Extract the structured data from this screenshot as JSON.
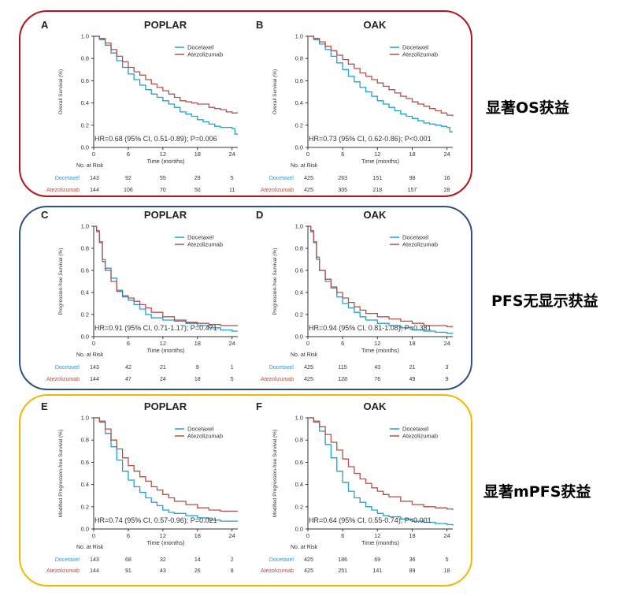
{
  "colors": {
    "docetaxel": "#1e9fd8",
    "atezolizumab": "#b5504a",
    "os_box": "#b5121b",
    "pfs_box": "#2f4f86",
    "mpfs_box": "#f2b800"
  },
  "annotations": {
    "os": "显著OS获益",
    "pfs": "PFS无显示获益",
    "mpfs": "显著mPFS获益"
  },
  "risk_header": "No. at Risk",
  "x_label": "Time (months)",
  "chart_data": [
    {
      "id": "A",
      "type": "line",
      "panel_letter": "A",
      "title": "POPLAR",
      "ylabel": "Overall Survival (%)",
      "xlabel": "Time (months)",
      "xlim": [
        0,
        25
      ],
      "ylim": [
        0,
        1
      ],
      "xticks": [
        0,
        6,
        12,
        18,
        24
      ],
      "yticks": [
        0,
        0.2,
        0.4,
        0.6,
        0.8,
        1.0
      ],
      "legend": "top-right",
      "hr_text": "HR=0.68 (95% CI, 0.51-0.89); P=0.006",
      "series": [
        {
          "name": "Docetaxel",
          "x": [
            0,
            1,
            2,
            3,
            4,
            5,
            6,
            7,
            8,
            9,
            10,
            11,
            12,
            13,
            14,
            15,
            16,
            17,
            18,
            19,
            20,
            21,
            22,
            23,
            24,
            24.5,
            25
          ],
          "y": [
            1,
            0.97,
            0.92,
            0.85,
            0.78,
            0.72,
            0.66,
            0.61,
            0.56,
            0.52,
            0.48,
            0.45,
            0.42,
            0.39,
            0.36,
            0.32,
            0.3,
            0.28,
            0.25,
            0.23,
            0.21,
            0.19,
            0.18,
            0.18,
            0.17,
            0.12,
            0.12
          ]
        },
        {
          "name": "Atezolizumab",
          "x": [
            0,
            1,
            2,
            3,
            4,
            5,
            6,
            7,
            8,
            9,
            10,
            11,
            12,
            13,
            14,
            15,
            16,
            17,
            18,
            19,
            20,
            21,
            22,
            23,
            24,
            25
          ],
          "y": [
            1,
            0.98,
            0.94,
            0.88,
            0.82,
            0.77,
            0.72,
            0.68,
            0.65,
            0.61,
            0.57,
            0.54,
            0.51,
            0.48,
            0.45,
            0.42,
            0.41,
            0.4,
            0.39,
            0.39,
            0.36,
            0.35,
            0.34,
            0.32,
            0.31,
            0.31
          ]
        }
      ],
      "risk": {
        "times": [
          0,
          6,
          12,
          18,
          24
        ],
        "rows": [
          {
            "name": "Docetaxel",
            "n": "143",
            "values": [
              "92",
              "55",
              "29",
              "5"
            ]
          },
          {
            "name": "Atezolizumab",
            "n": "144",
            "values": [
              "106",
              "70",
              "50",
              "11"
            ]
          }
        ]
      }
    },
    {
      "id": "B",
      "type": "line",
      "panel_letter": "B",
      "title": "OAK",
      "ylabel": "Overall Survival (%)",
      "xlabel": "Time (months)",
      "xlim": [
        0,
        25
      ],
      "ylim": [
        0,
        1
      ],
      "xticks": [
        0,
        6,
        12,
        18,
        24
      ],
      "yticks": [
        0,
        0.2,
        0.4,
        0.6,
        0.8,
        1.0
      ],
      "legend": "top-right",
      "hr_text": "HR=0.73 (95% CI, 0.62-0.86); P<0.001",
      "series": [
        {
          "name": "Docetaxel",
          "x": [
            0,
            1,
            2,
            3,
            4,
            5,
            6,
            7,
            8,
            9,
            10,
            11,
            12,
            13,
            14,
            15,
            16,
            17,
            18,
            19,
            20,
            21,
            22,
            23,
            24,
            24.5,
            25
          ],
          "y": [
            1,
            0.97,
            0.93,
            0.88,
            0.82,
            0.76,
            0.7,
            0.64,
            0.59,
            0.54,
            0.5,
            0.46,
            0.42,
            0.39,
            0.36,
            0.33,
            0.3,
            0.28,
            0.26,
            0.24,
            0.22,
            0.21,
            0.2,
            0.19,
            0.18,
            0.14,
            0.14
          ]
        },
        {
          "name": "Atezolizumab",
          "x": [
            0,
            1,
            2,
            3,
            4,
            5,
            6,
            7,
            8,
            9,
            10,
            11,
            12,
            13,
            14,
            15,
            16,
            17,
            18,
            19,
            20,
            21,
            22,
            23,
            24,
            25
          ],
          "y": [
            1,
            0.98,
            0.95,
            0.91,
            0.87,
            0.83,
            0.79,
            0.75,
            0.71,
            0.67,
            0.64,
            0.61,
            0.58,
            0.55,
            0.52,
            0.49,
            0.46,
            0.44,
            0.41,
            0.39,
            0.37,
            0.35,
            0.33,
            0.31,
            0.29,
            0.28
          ]
        }
      ],
      "risk": {
        "times": [
          0,
          6,
          12,
          18,
          24
        ],
        "rows": [
          {
            "name": "Docetaxel",
            "n": "425",
            "values": [
              "263",
              "151",
              "98",
              "16"
            ]
          },
          {
            "name": "Atezolizumab",
            "n": "425",
            "values": [
              "305",
              "218",
              "157",
              "28"
            ]
          }
        ]
      }
    },
    {
      "id": "C",
      "type": "line",
      "panel_letter": "C",
      "title": "POPLAR",
      "ylabel": "Progression-free Survival (%)",
      "xlabel": "Time (months)",
      "xlim": [
        0,
        25
      ],
      "ylim": [
        0,
        1
      ],
      "xticks": [
        0,
        6,
        12,
        18,
        24
      ],
      "yticks": [
        0,
        0.2,
        0.4,
        0.6,
        0.8,
        1.0
      ],
      "legend": "top-right",
      "hr_text": "HR=0.91 (95% CI, 0.71-1.17); P=0.471",
      "series": [
        {
          "name": "Docetaxel",
          "x": [
            0,
            0.5,
            1,
            1.5,
            2,
            3,
            4,
            5,
            6,
            7,
            8,
            9,
            10,
            12,
            14,
            16,
            18,
            20,
            22,
            24,
            25
          ],
          "y": [
            1,
            0.95,
            0.85,
            0.7,
            0.62,
            0.53,
            0.42,
            0.36,
            0.33,
            0.29,
            0.25,
            0.2,
            0.17,
            0.15,
            0.14,
            0.12,
            0.1,
            0.08,
            0.06,
            0.05,
            0.05
          ]
        },
        {
          "name": "Atezolizumab",
          "x": [
            0,
            0.5,
            1,
            1.5,
            2,
            3,
            4,
            5,
            6,
            7,
            8,
            9,
            10,
            12,
            14,
            16,
            18,
            20,
            22,
            24,
            25
          ],
          "y": [
            1,
            0.96,
            0.86,
            0.68,
            0.6,
            0.5,
            0.41,
            0.37,
            0.35,
            0.32,
            0.29,
            0.26,
            0.22,
            0.18,
            0.15,
            0.13,
            0.12,
            0.11,
            0.1,
            0.1,
            0.1
          ]
        }
      ],
      "risk": {
        "times": [
          0,
          6,
          12,
          18,
          24
        ],
        "rows": [
          {
            "name": "Docetaxel",
            "n": "143",
            "values": [
              "42",
              "21",
              "9",
              "1"
            ]
          },
          {
            "name": "Atezolizumab",
            "n": "144",
            "values": [
              "47",
              "24",
              "18",
              "5"
            ]
          }
        ]
      }
    },
    {
      "id": "D",
      "type": "line",
      "panel_letter": "D",
      "title": "OAK",
      "ylabel": "Progression-free Survival (%)",
      "xlabel": "Time (months)",
      "xlim": [
        0,
        25
      ],
      "ylim": [
        0,
        1
      ],
      "xticks": [
        0,
        6,
        12,
        18,
        24
      ],
      "yticks": [
        0,
        0.2,
        0.4,
        0.6,
        0.8,
        1.0
      ],
      "legend": "top-right",
      "hr_text": "HR=0.94 (95% CI, 0.81-1.08); P=0.381",
      "series": [
        {
          "name": "Docetaxel",
          "x": [
            0,
            0.5,
            1,
            1.5,
            2,
            3,
            4,
            5,
            6,
            7,
            8,
            9,
            10,
            12,
            14,
            16,
            18,
            20,
            22,
            24,
            25
          ],
          "y": [
            1,
            0.95,
            0.85,
            0.72,
            0.6,
            0.5,
            0.44,
            0.36,
            0.3,
            0.26,
            0.22,
            0.18,
            0.15,
            0.12,
            0.1,
            0.08,
            0.06,
            0.05,
            0.04,
            0.03,
            0.03
          ]
        },
        {
          "name": "Atezolizumab",
          "x": [
            0,
            0.5,
            1,
            1.5,
            2,
            3,
            4,
            5,
            6,
            7,
            8,
            9,
            10,
            12,
            14,
            16,
            18,
            20,
            22,
            24,
            25
          ],
          "y": [
            1,
            0.96,
            0.86,
            0.7,
            0.6,
            0.52,
            0.45,
            0.4,
            0.35,
            0.31,
            0.27,
            0.24,
            0.21,
            0.18,
            0.16,
            0.14,
            0.12,
            0.1,
            0.1,
            0.09,
            0.09
          ]
        }
      ],
      "risk": {
        "times": [
          0,
          6,
          12,
          18,
          24
        ],
        "rows": [
          {
            "name": "Docetaxel",
            "n": "425",
            "values": [
              "115",
              "43",
              "21",
              "3"
            ]
          },
          {
            "name": "Atezolizumab",
            "n": "425",
            "values": [
              "128",
              "76",
              "49",
              "9"
            ]
          }
        ]
      }
    },
    {
      "id": "E",
      "type": "line",
      "panel_letter": "E",
      "title": "POPLAR",
      "ylabel": "Modified Progression-free Survival (%)",
      "xlabel": "Time (months)",
      "xlim": [
        0,
        25
      ],
      "ylim": [
        0,
        1
      ],
      "xticks": [
        0,
        6,
        12,
        18,
        24
      ],
      "yticks": [
        0,
        0.2,
        0.4,
        0.6,
        0.8,
        1.0
      ],
      "legend": "top-right",
      "hr_text": "HR=0.74 (95% CI, 0.57-0.96); P=0.021",
      "series": [
        {
          "name": "Docetaxel",
          "x": [
            0,
            1,
            2,
            3,
            4,
            5,
            6,
            7,
            8,
            9,
            10,
            11,
            12,
            13,
            14,
            16,
            18,
            20,
            22,
            24,
            25
          ],
          "y": [
            1,
            0.96,
            0.86,
            0.74,
            0.62,
            0.52,
            0.44,
            0.38,
            0.33,
            0.28,
            0.24,
            0.21,
            0.17,
            0.15,
            0.14,
            0.12,
            0.1,
            0.08,
            0.07,
            0.07,
            0.07
          ]
        },
        {
          "name": "Atezolizumab",
          "x": [
            0,
            1,
            2,
            3,
            4,
            5,
            6,
            7,
            8,
            9,
            10,
            11,
            12,
            13,
            14,
            16,
            18,
            20,
            22,
            24,
            25
          ],
          "y": [
            1,
            0.97,
            0.9,
            0.8,
            0.72,
            0.64,
            0.57,
            0.52,
            0.47,
            0.43,
            0.38,
            0.35,
            0.31,
            0.28,
            0.25,
            0.22,
            0.19,
            0.17,
            0.16,
            0.16,
            0.16
          ]
        }
      ],
      "risk": {
        "times": [
          0,
          6,
          12,
          18,
          24
        ],
        "rows": [
          {
            "name": "Docetaxel",
            "n": "143",
            "values": [
              "68",
              "32",
              "14",
              "2"
            ]
          },
          {
            "name": "Atezolizumab",
            "n": "144",
            "values": [
              "91",
              "43",
              "26",
              "8"
            ]
          }
        ]
      }
    },
    {
      "id": "F",
      "type": "line",
      "panel_letter": "F",
      "title": "OAK",
      "ylabel": "Modified Progression-free Survival (%)",
      "xlabel": "Time (months)",
      "xlim": [
        0,
        25
      ],
      "ylim": [
        0,
        1
      ],
      "xticks": [
        0,
        6,
        12,
        18,
        24
      ],
      "yticks": [
        0,
        0.2,
        0.4,
        0.6,
        0.8,
        1.0
      ],
      "legend": "top-right",
      "hr_text": "HR=0.64 (95% CI, 0.55-0.74); P<0.001",
      "series": [
        {
          "name": "Docetaxel",
          "x": [
            0,
            1,
            2,
            3,
            4,
            5,
            6,
            7,
            8,
            9,
            10,
            11,
            12,
            13,
            14,
            16,
            18,
            20,
            22,
            24,
            25
          ],
          "y": [
            1,
            0.96,
            0.88,
            0.76,
            0.64,
            0.52,
            0.42,
            0.34,
            0.28,
            0.24,
            0.2,
            0.17,
            0.14,
            0.12,
            0.11,
            0.09,
            0.07,
            0.06,
            0.05,
            0.04,
            0.03
          ]
        },
        {
          "name": "Atezolizumab",
          "x": [
            0,
            1,
            2,
            3,
            4,
            5,
            6,
            7,
            8,
            9,
            10,
            11,
            12,
            13,
            14,
            16,
            18,
            20,
            22,
            24,
            25
          ],
          "y": [
            1,
            0.97,
            0.92,
            0.85,
            0.78,
            0.71,
            0.63,
            0.56,
            0.5,
            0.45,
            0.41,
            0.37,
            0.34,
            0.31,
            0.29,
            0.25,
            0.22,
            0.2,
            0.19,
            0.18,
            0.17
          ]
        }
      ],
      "risk": {
        "times": [
          0,
          6,
          12,
          18,
          24
        ],
        "rows": [
          {
            "name": "Docetaxel",
            "n": "425",
            "values": [
              "186",
              "69",
              "36",
              "5"
            ]
          },
          {
            "name": "Atezolizumab",
            "n": "425",
            "values": [
              "251",
              "141",
              "89",
              "18"
            ]
          }
        ]
      }
    }
  ]
}
